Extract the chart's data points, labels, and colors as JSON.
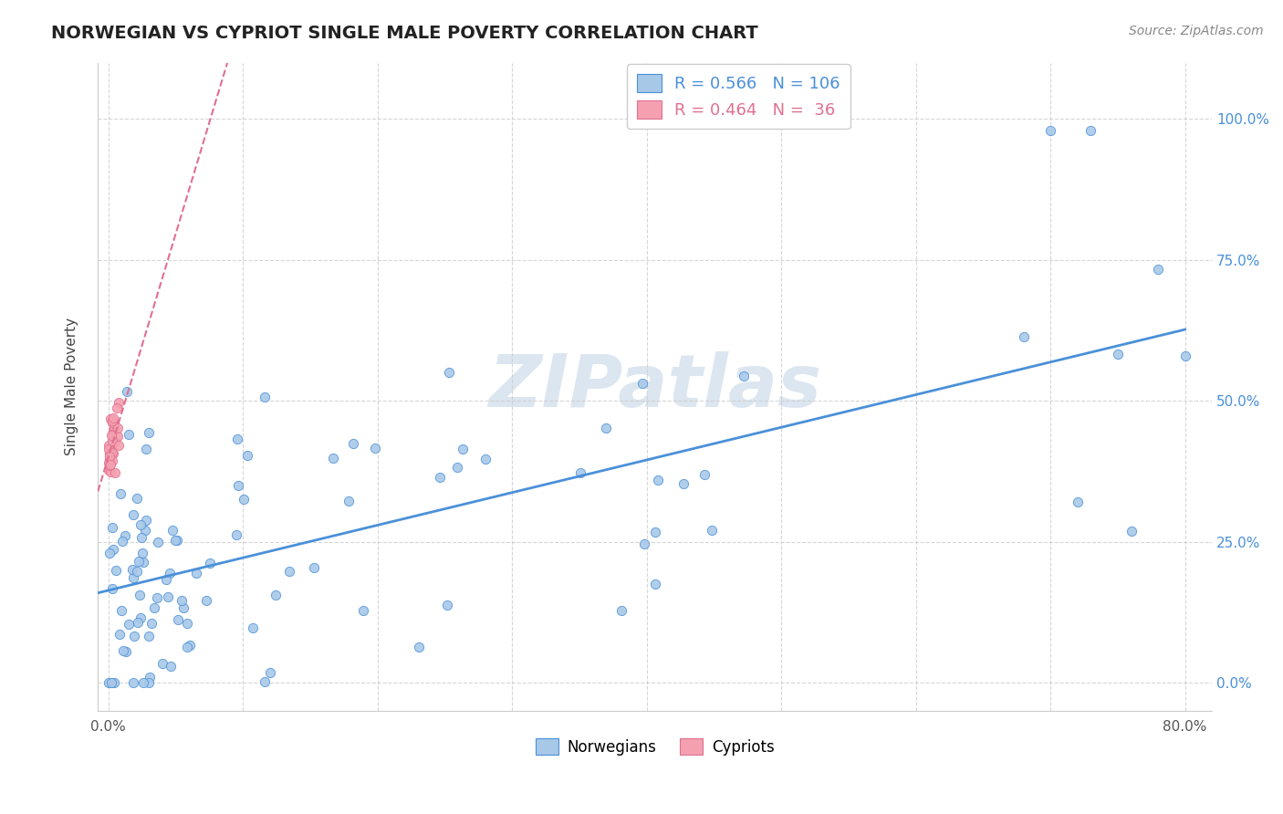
{
  "title": "NORWEGIAN VS CYPRIOT SINGLE MALE POVERTY CORRELATION CHART",
  "source": "Source: ZipAtlas.com",
  "xlabel_norwegian": "Norwegians",
  "xlabel_cypriot": "Cypriots",
  "ylabel": "Single Male Poverty",
  "norwegian_R": 0.566,
  "norwegian_N": 106,
  "cypriot_R": 0.464,
  "cypriot_N": 36,
  "norwegian_color": "#a8c8e8",
  "norwegian_line_color": "#4a90d9",
  "cypriot_color": "#f4a0b0",
  "cypriot_line_color": "#e07090",
  "background_color": "#ffffff",
  "watermark_color": "#dce6f0",
  "title_fontsize": 14,
  "xmin": 0.0,
  "xmax": 0.8,
  "ymin": -0.05,
  "ymax": 1.05
}
